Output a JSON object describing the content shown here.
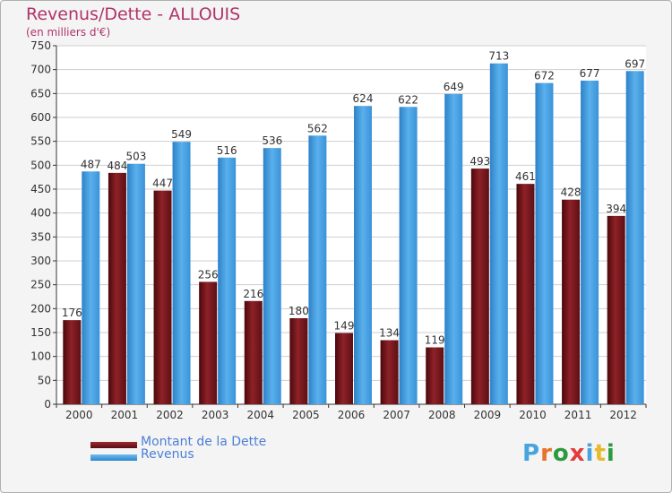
{
  "title": "Revenus/Dette - ALLOUIS",
  "subtitle": "(en milliers d'€)",
  "logo": {
    "text": "Proxiti",
    "letter_colors": [
      "#4aa3df",
      "#e8732a",
      "#2d9a3e",
      "#e23c3c",
      "#4aa3df",
      "#e8b92a",
      "#2d9a3e"
    ]
  },
  "colors": {
    "dette": "#7b1a1f",
    "revenus": "#4aa3e6",
    "title": "#b0336a",
    "legend_text": "#4d7fd6"
  },
  "chart_data": {
    "type": "bar",
    "title": "Revenus/Dette - ALLOUIS",
    "ylabel": "(en milliers d'€)",
    "xlabel": "",
    "ylim": [
      0,
      750
    ],
    "yticks": [
      0,
      50,
      100,
      150,
      200,
      250,
      300,
      350,
      400,
      450,
      500,
      550,
      600,
      650,
      700,
      750
    ],
    "grid": true,
    "legend_position": "bottom-left",
    "categories": [
      "2000",
      "2001",
      "2002",
      "2003",
      "2004",
      "2005",
      "2006",
      "2007",
      "2008",
      "2009",
      "2010",
      "2011",
      "2012"
    ],
    "series": [
      {
        "name": "Montant de la Dette",
        "color": "#7b1a1f",
        "values": [
          176,
          484,
          447,
          256,
          216,
          180,
          149,
          134,
          119,
          493,
          461,
          428,
          394
        ]
      },
      {
        "name": "Revenus",
        "color": "#4aa3e6",
        "values": [
          487,
          503,
          549,
          516,
          536,
          562,
          624,
          622,
          649,
          713,
          672,
          677,
          697
        ]
      }
    ]
  }
}
